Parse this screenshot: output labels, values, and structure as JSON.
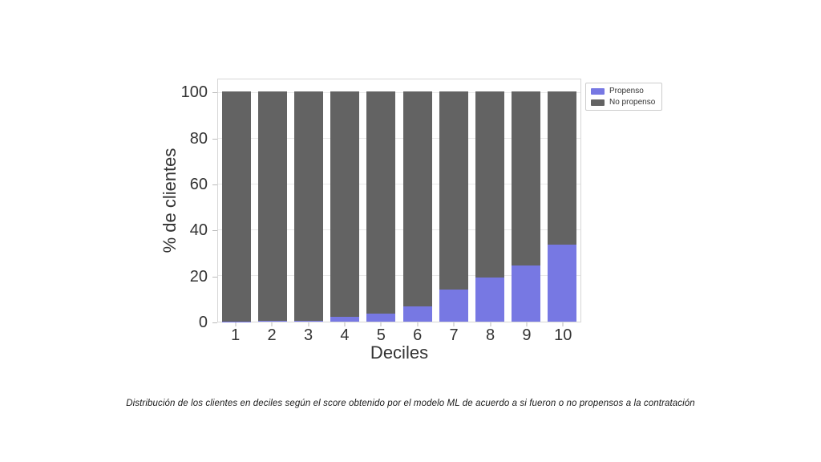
{
  "colors": {
    "propenso": "#7778e3",
    "no_propenso": "#636363",
    "gridline": "#e9e9e9",
    "spine": "#d6d6d6",
    "text": "#333333",
    "background": "#ffffff"
  },
  "chart_data": {
    "type": "bar",
    "stacked": true,
    "title": "",
    "xlabel": "Deciles",
    "ylabel": "% de clientes",
    "categories": [
      "1",
      "2",
      "3",
      "4",
      "5",
      "6",
      "7",
      "8",
      "9",
      "10"
    ],
    "series": [
      {
        "name": "Propenso",
        "color": "#7778e3",
        "values": [
          0.1,
          0.2,
          0.4,
          2.0,
          3.5,
          6.7,
          13.8,
          19.3,
          24.3,
          33.4
        ]
      },
      {
        "name": "No propenso",
        "color": "#636363",
        "values": [
          99.9,
          99.8,
          99.6,
          98.0,
          96.5,
          93.3,
          86.2,
          80.7,
          75.7,
          66.6
        ]
      }
    ],
    "yticks": [
      0,
      20,
      40,
      60,
      80,
      100
    ],
    "ylim": [
      0,
      106
    ],
    "grid": true,
    "legend_position": "outside-upper-right",
    "legend_entries": [
      "Propenso",
      "No propenso"
    ]
  },
  "caption": "Distribución de los clientes en deciles según el score obtenido por el modelo ML de acuerdo a si fueron o no propensos a la contratación"
}
